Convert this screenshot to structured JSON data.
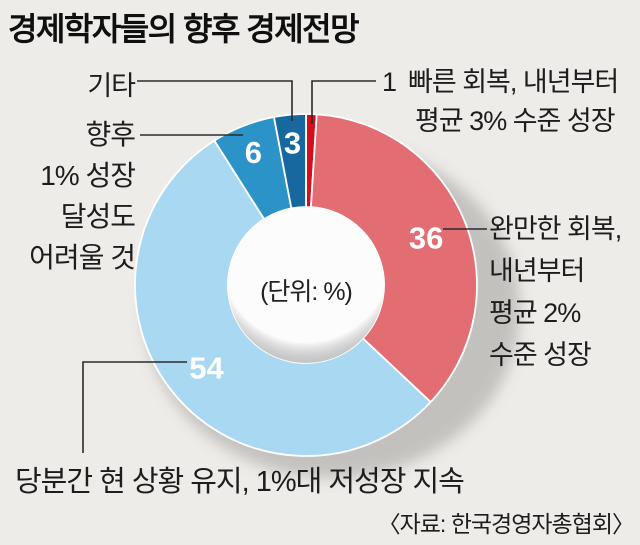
{
  "title": "경제학자들의 향후 경제전망",
  "center_note": "(단위: %)",
  "source": "〈자료: 한국경영자총협회〉",
  "chart_data": {
    "type": "pie",
    "subtype": "donut",
    "unit": "%",
    "title": "경제학자들의 향후 경제전망",
    "start_angle": "top, clockwise",
    "segments": [
      {
        "name": "빠른 회복, 내년부터 평균 3% 수준 성장",
        "value": 1,
        "color": "#d50f1e"
      },
      {
        "name": "완만한 회복, 내년부터 평균 2% 수준 성장",
        "value": 36,
        "color": "#e26e74"
      },
      {
        "name": "당분간 현 상황 유지, 1%대 저성장 지속",
        "value": 54,
        "color": "#a9d8f3"
      },
      {
        "name": "향후 1% 성장 달성도 어려울 것",
        "value": 6,
        "color": "#2b93c8"
      },
      {
        "name": "기타",
        "value": 3,
        "color": "#16689f"
      }
    ]
  },
  "callouts": {
    "other": {
      "text": "기타"
    },
    "slow": {
      "text": "향후\n1% 성장\n달성도\n어려울 것"
    },
    "fast": {
      "value": "1",
      "line1": "빠른 회복, 내년부터",
      "line2": "평균 3% 수준 성장"
    },
    "moderate": {
      "text": "완만한 회복,\n내년부터\n평균 2%\n수준 성장"
    },
    "maintain": {
      "text": "당분간 현 상황 유지, 1%대 저성장 지속"
    }
  }
}
